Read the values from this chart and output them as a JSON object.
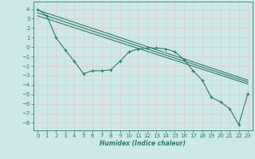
{
  "xlabel": "Humidex (Indice chaleur)",
  "background_color": "#cce8e8",
  "grid_color": "#e8c8c8",
  "line_color": "#2d7d6e",
  "xlim": [
    -0.5,
    23.5
  ],
  "ylim": [
    -8.8,
    4.8
  ],
  "xticks": [
    0,
    1,
    2,
    3,
    4,
    5,
    6,
    7,
    8,
    9,
    10,
    11,
    12,
    13,
    14,
    15,
    16,
    17,
    18,
    19,
    20,
    21,
    22,
    23
  ],
  "yticks": [
    4,
    3,
    2,
    1,
    0,
    -1,
    -2,
    -3,
    -4,
    -5,
    -6,
    -7,
    -8
  ],
  "curve_x": [
    0,
    1,
    2,
    3,
    4,
    5,
    6,
    7,
    8,
    9,
    10,
    11,
    12,
    13,
    14,
    15,
    16,
    17,
    18,
    19,
    20,
    21,
    22,
    23
  ],
  "curve_y": [
    4.0,
    3.3,
    1.0,
    -0.3,
    -1.5,
    -2.8,
    -2.5,
    -2.5,
    -2.4,
    -1.5,
    -0.5,
    -0.2,
    -0.1,
    -0.1,
    -0.2,
    -0.5,
    -1.3,
    -2.5,
    -3.5,
    -5.3,
    -5.8,
    -6.5,
    -8.2,
    -4.9
  ],
  "trend_lines": [
    {
      "x": [
        0,
        23
      ],
      "y": [
        3.9,
        -3.5
      ]
    },
    {
      "x": [
        0,
        23
      ],
      "y": [
        3.6,
        -3.7
      ]
    },
    {
      "x": [
        0,
        23
      ],
      "y": [
        3.3,
        -3.9
      ]
    }
  ]
}
